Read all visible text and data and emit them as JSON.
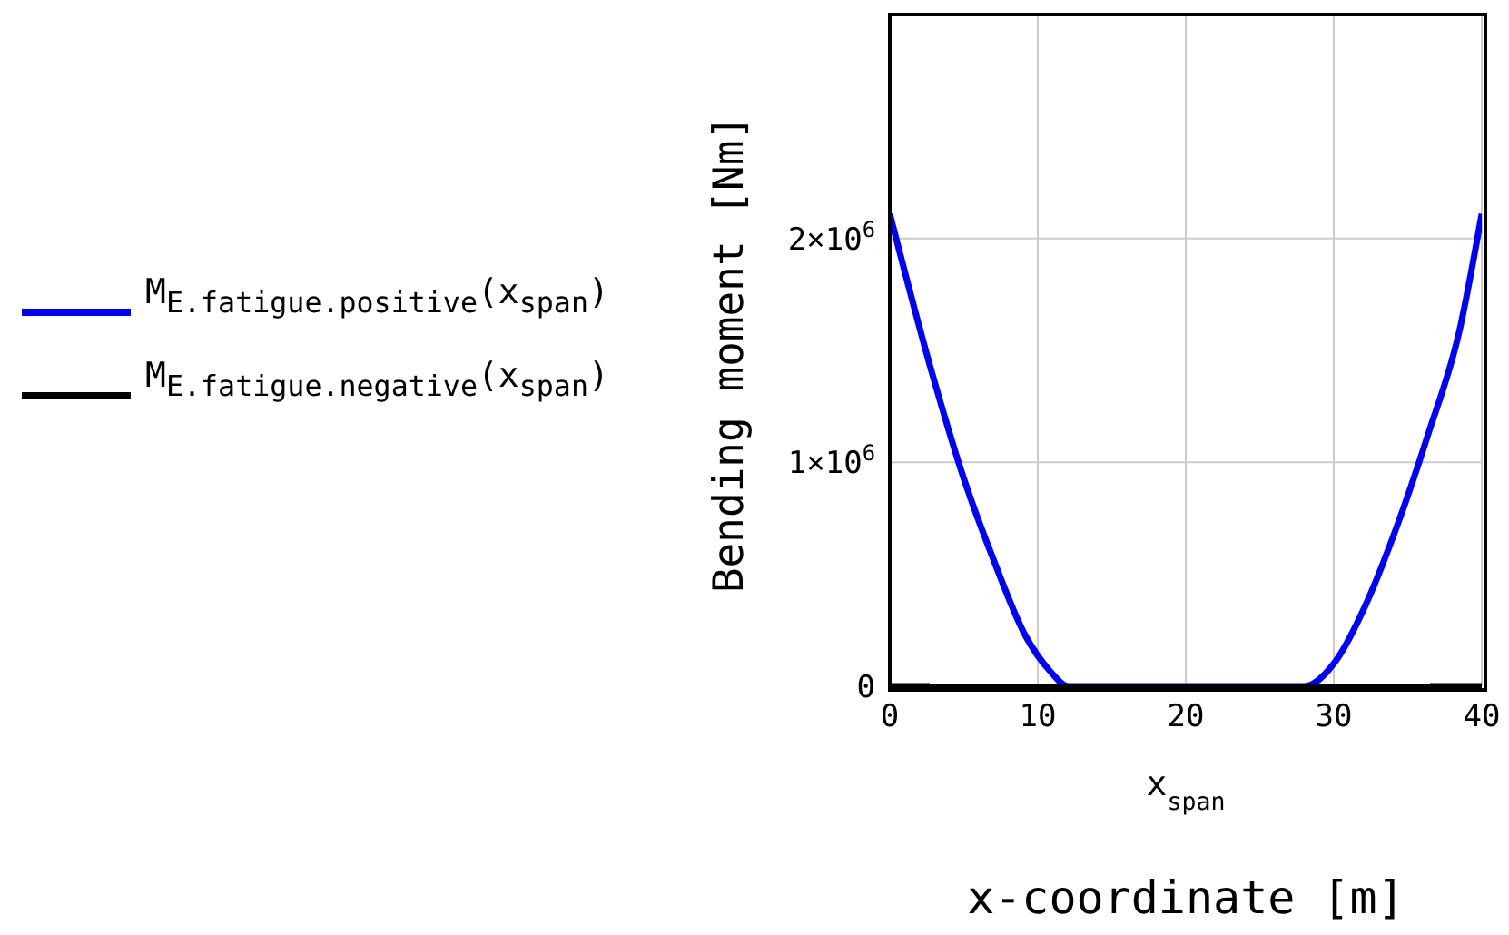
{
  "chart_data": {
    "type": "line",
    "ylabel": "Bending moment [Nm]",
    "xlabel": "x$_{span}$",
    "annotations": [
      "x-coordinate [m]"
    ],
    "series": [
      {
        "name": "M$_{E.fatigue.positive}$(x$_{span}$)",
        "color": "#0000ff",
        "x": [
          0,
          2.85,
          4.94,
          7.04,
          9.13,
          10.8,
          12.06,
          20,
          28.0,
          30.1,
          32.2,
          34.3,
          36.4,
          38.5,
          40
        ],
        "values": [
          2110000,
          1400000,
          940000,
          560000,
          230000,
          70000,
          0,
          0,
          0,
          110000,
          370000,
          720000,
          1130000,
          1590000,
          2110000
        ]
      },
      {
        "name": "M$_{E.fatigue.negative}$(x$_{span}$)",
        "color": "#000000",
        "x": [
          0,
          2.7,
          20,
          36.5,
          40
        ],
        "values": [
          0,
          0,
          null,
          0,
          0
        ]
      }
    ],
    "xlim": [
      0,
      40
    ],
    "xticks": [
      0,
      10,
      20,
      30,
      40
    ],
    "ylim": [
      0,
      3000000
    ],
    "yticks": [
      0,
      {
        "value": 1000000,
        "label": "1×10$^{6}$"
      },
      {
        "value": 2000000,
        "label": "2×10$^{6}$"
      }
    ],
    "grid": true,
    "legend": "left",
    "marker": "none",
    "line_style": "solid"
  }
}
